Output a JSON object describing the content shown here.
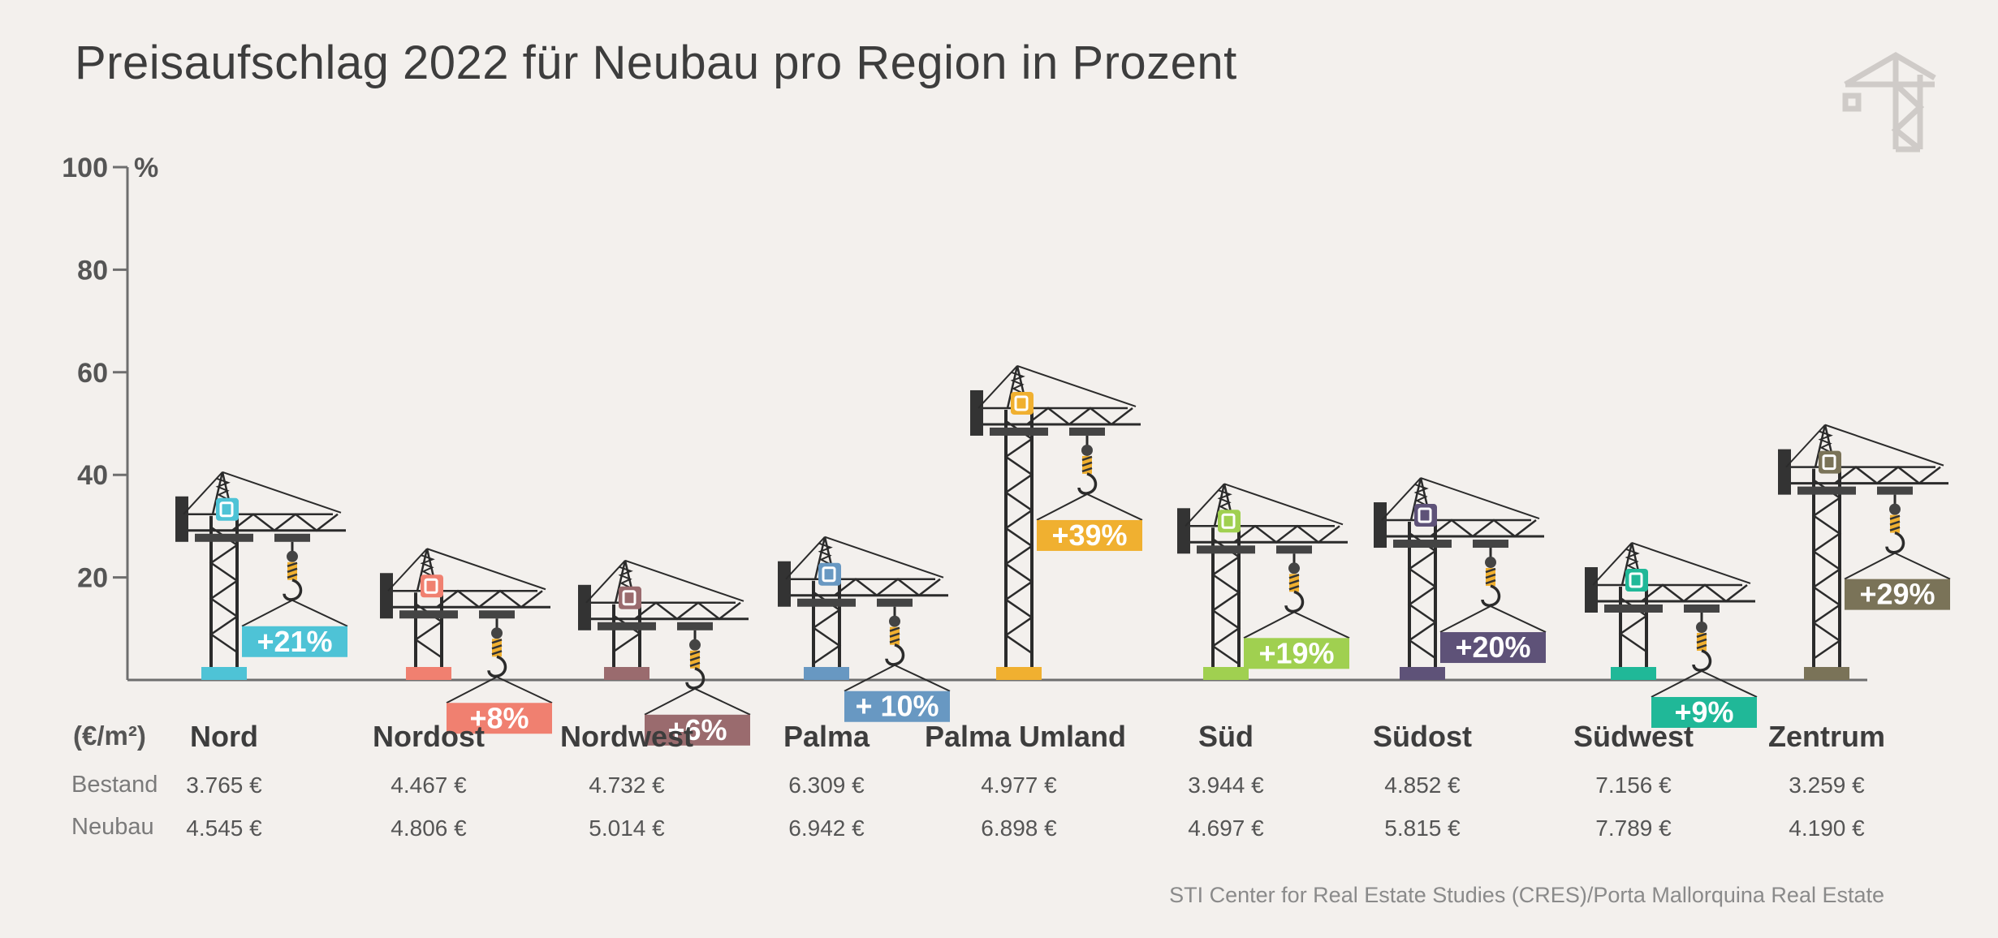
{
  "title": "Preisaufschlag 2022 für Neubau pro Region in Prozent",
  "source": "STI Center for Real Estate Studies (CRES)/Porta Mallorquina Real Estate",
  "colors": {
    "background": "#f3f0ed",
    "crane": "#2b2b2b",
    "axis": "#6e6e6e",
    "logo": "#cfcbc8"
  },
  "chart_data": {
    "type": "bar",
    "title": "Preisaufschlag 2022 für Neubau pro Region in Prozent",
    "ylabel": "%",
    "ylim": [
      0,
      100
    ],
    "yticks": [
      20,
      40,
      60,
      80,
      100
    ],
    "unit_label": "(€/m²)",
    "row_labels": [
      "Bestand",
      "Neubau"
    ],
    "categories": [
      "Nord",
      "Nordost",
      "Nordwest",
      "Palma",
      "Palma Umland",
      "Süd",
      "Südost",
      "Südwest",
      "Zentrum"
    ],
    "values": [
      21,
      8,
      6,
      10,
      39,
      19,
      20,
      9,
      29
    ],
    "value_labels": [
      "+21%",
      "+8%",
      "+6%",
      "+ 10%",
      "+39%",
      "+19%",
      "+20%",
      "+9%",
      "+29%"
    ],
    "series_colors": [
      "#4ec3d6",
      "#f08070",
      "#9a6b6e",
      "#6898c2",
      "#f0b030",
      "#a0d050",
      "#5e5278",
      "#20b898",
      "#7a7358"
    ],
    "bestand": [
      "3.765 €",
      "4.467 €",
      "4.732 €",
      "6.309 €",
      "4.977 €",
      "3.944 €",
      "4.852 €",
      "7.156 €",
      "3.259 €"
    ],
    "neubau": [
      "4.545 €",
      "4.806 €",
      "5.014 €",
      "6.942 €",
      "6.898 €",
      "4.697 €",
      "5.815 €",
      "7.789 €",
      "4.190 €"
    ]
  }
}
